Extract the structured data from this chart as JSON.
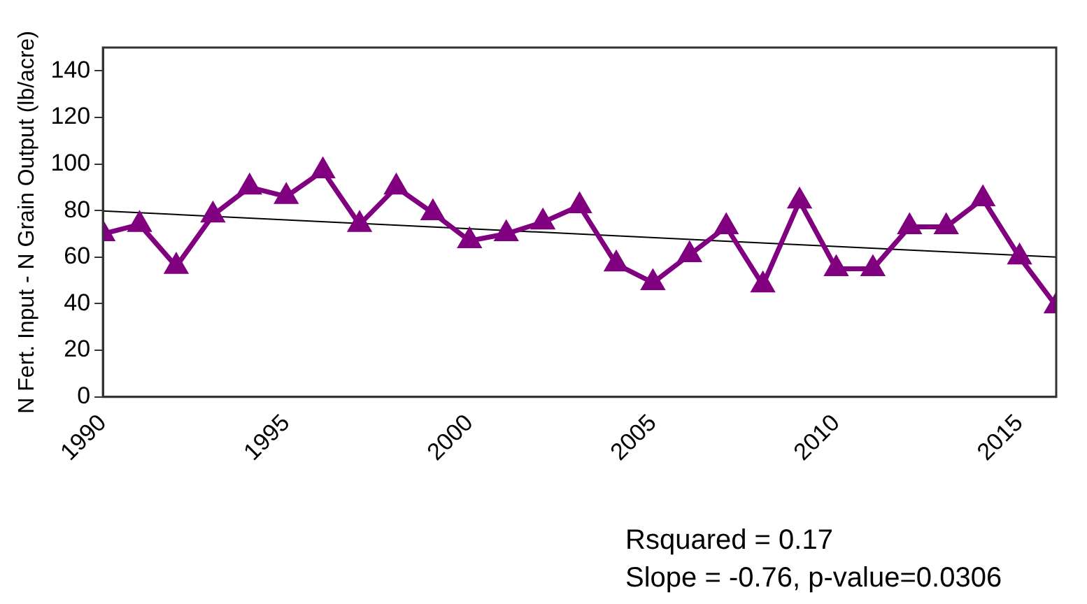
{
  "chart_data": {
    "type": "line",
    "ylabel": "N Fert. Input - N Grain Output (lb/acre)",
    "x": [
      1990,
      1991,
      1992,
      1993,
      1994,
      1995,
      1996,
      1997,
      1998,
      1999,
      2000,
      2001,
      2002,
      2003,
      2004,
      2005,
      2006,
      2007,
      2008,
      2009,
      2010,
      2011,
      2012,
      2013,
      2014,
      2015,
      2016
    ],
    "series": [
      {
        "color": "#800080",
        "values": [
          70,
          74,
          56,
          78,
          90,
          86,
          97,
          74,
          90,
          79,
          67,
          70,
          75,
          82,
          57,
          49,
          61,
          73,
          48,
          84,
          55,
          55,
          73,
          73,
          85,
          60,
          39
        ]
      },
      {
        "type": "line",
        "color": "#000000",
        "marker": "none",
        "x": [
          1990,
          2016
        ],
        "values": [
          79.8,
          60
        ]
      }
    ],
    "xlim": [
      1990,
      2016
    ],
    "xticks": [
      1990,
      1995,
      2000,
      2005,
      2010,
      2015
    ],
    "ylim": [
      0,
      150
    ],
    "yticks": [
      0,
      20,
      40,
      60,
      80,
      100,
      120,
      140
    ],
    "grid": false,
    "legend": false,
    "marker": "triangle",
    "line_style": "solid",
    "annotations": [
      "Rsquared = 0.17",
      "Slope = -0.76, p-value=0.0306"
    ]
  }
}
